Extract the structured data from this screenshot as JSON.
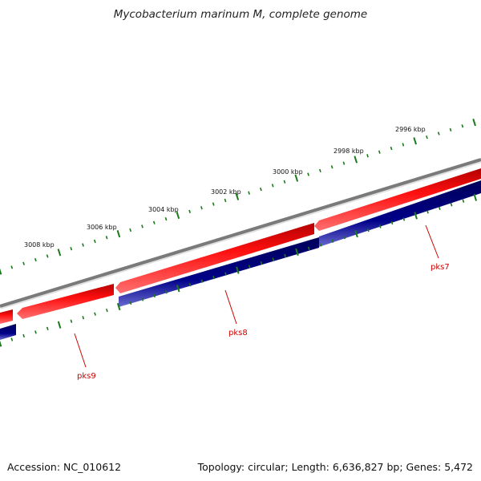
{
  "title": "Mycobacterium marinum M, complete genome",
  "accession": "Accession: NC_010612",
  "summary": "Topology: circular; Length: 6,636,827 bp; Genes: 5,472",
  "colors": {
    "backbone": "#808080",
    "forward_gene": "#ff0000",
    "reverse_gene": "#000080",
    "tick": "#1a7a1a",
    "label": "#cc0000"
  },
  "kbp_labels": [
    "2996 kbp",
    "2998 kbp",
    "3000 kbp",
    "3002 kbp",
    "3004 kbp",
    "3006 kbp",
    "3008 kbp"
  ],
  "gene_labels": [
    "pks7",
    "pks8",
    "pks9"
  ]
}
